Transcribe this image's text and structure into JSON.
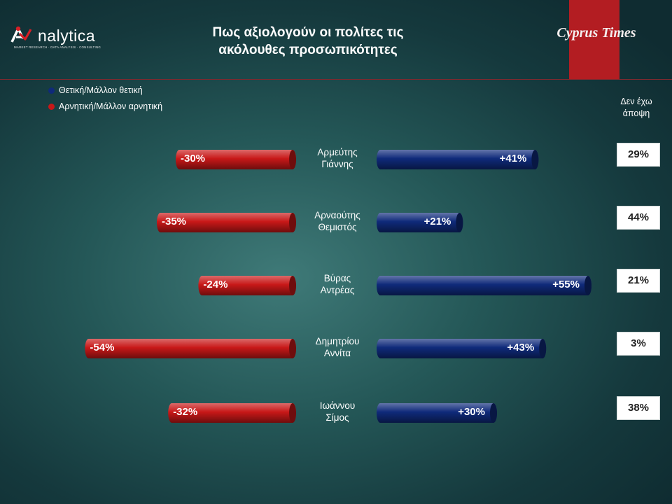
{
  "header": {
    "title_line1": "Πως αξιολογούν οι πολίτες τις",
    "title_line2": "ακόλουθες προσωπικότητες",
    "logo_name": "nalytica",
    "logo_tagline": "MARKET RESEARCH · DATA ANALYSIS · CONSULTING",
    "brand_name": "Cyprus Times",
    "brand_color": "#b31d22"
  },
  "legend": [
    {
      "label": "Θετική/Μάλλον θετική",
      "color": "#0f2a7a"
    },
    {
      "label": "Αρνητική/Μάλλον αρνητική",
      "color": "#c81818"
    }
  ],
  "no_opinion_header": {
    "line1": "Δεν έχω",
    "line2": "άποψη"
  },
  "chart_data": {
    "type": "bar",
    "categories": [
      [
        "Αρμεύτης",
        "Γιάννης"
      ],
      [
        "Αρναούτης",
        "Θεμιστός"
      ],
      [
        "Βύρας",
        "Αντρέας"
      ],
      [
        "Δημητρίου",
        "Αννίτα"
      ],
      [
        "Ιωάννου",
        "Σίμος"
      ]
    ],
    "series": [
      {
        "name": "Θετική/Μάλλον θετική",
        "values": [
          41,
          21,
          55,
          43,
          30
        ],
        "labels": [
          "+41%",
          "+21%",
          "+55%",
          "+43%",
          "+30%"
        ],
        "color": "#0f2a7a"
      },
      {
        "name": "Αρνητική/Μάλλον αρνητική",
        "values": [
          -30,
          -35,
          -24,
          -54,
          -32
        ],
        "labels": [
          "-30%",
          "-35%",
          "-24%",
          "-54%",
          "-32%"
        ],
        "color": "#c81818"
      }
    ],
    "no_opinion": [
      "29%",
      "44%",
      "21%",
      "3%",
      "38%"
    ]
  }
}
